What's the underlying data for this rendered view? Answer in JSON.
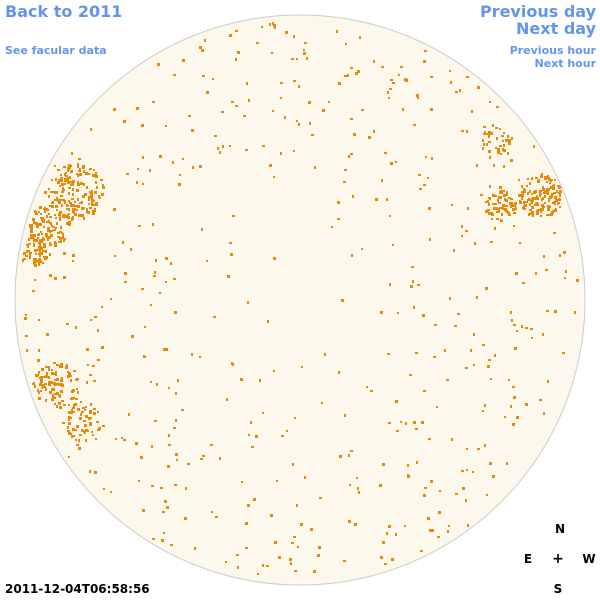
{
  "nav": {
    "back": "Back to 2011",
    "facular": "See facular data",
    "previous_day": "Previous day",
    "next_day": "Next day",
    "previous_hour": "Previous hour",
    "next_hour": "Next hour"
  },
  "image": {
    "timestamp": "2011-12-04T06:58:56",
    "disk_color": "#fdf8ec",
    "limb_color": "#cccccc",
    "facula_color": "#e8890c"
  },
  "compass": {
    "north": "N",
    "east": "E",
    "center": "+",
    "west": "W",
    "south": "S"
  }
}
